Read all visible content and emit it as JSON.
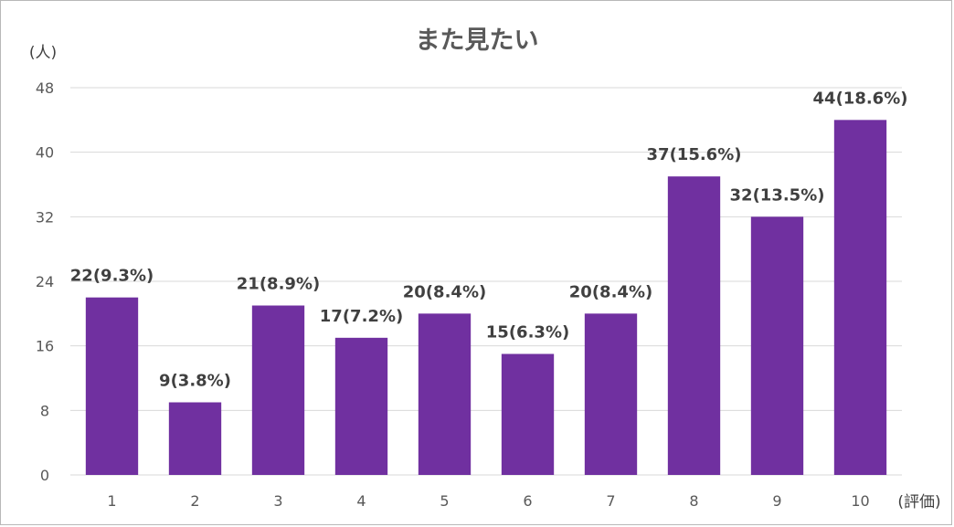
{
  "chart_data": {
    "type": "bar",
    "title": "また見たい",
    "ylabel": "(人)",
    "xlabel": "(評価)",
    "categories": [
      "1",
      "2",
      "3",
      "4",
      "5",
      "6",
      "7",
      "8",
      "9",
      "10"
    ],
    "values": [
      22,
      9,
      21,
      17,
      20,
      15,
      20,
      37,
      32,
      44
    ],
    "data_labels": [
      "22(9.3%)",
      "9(3.8%)",
      "21(8.9%)",
      "17(7.2%)",
      "20(8.4%)",
      "15(6.3%)",
      "20(8.4%)",
      "37(15.6%)",
      "32(13.5%)",
      "44(18.6%)"
    ],
    "ylim": [
      0,
      48
    ],
    "yticks": [
      0,
      8,
      16,
      24,
      32,
      40,
      48
    ],
    "grid": true,
    "legend": "none",
    "bar_color": "#7030a0"
  }
}
